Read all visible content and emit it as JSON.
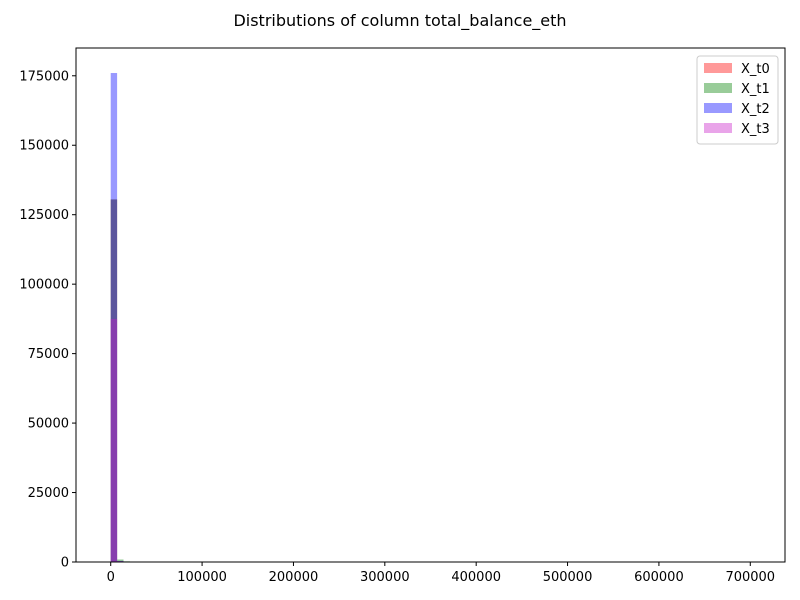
{
  "chart_data": {
    "type": "bar",
    "title": "Distributions of column total_balance_eth",
    "xlabel": "",
    "ylabel": "",
    "xlim": [
      -38000,
      738000
    ],
    "ylim": [
      0,
      185000
    ],
    "x_ticks": [
      0,
      100000,
      200000,
      300000,
      400000,
      500000,
      600000,
      700000
    ],
    "x_tick_labels": [
      "0",
      "100000",
      "200000",
      "300000",
      "400000",
      "500000",
      "600000",
      "700000"
    ],
    "y_ticks": [
      0,
      25000,
      50000,
      75000,
      100000,
      125000,
      150000,
      175000
    ],
    "y_tick_labels": [
      "0",
      "25000",
      "50000",
      "75000",
      "100000",
      "125000",
      "150000",
      "175000"
    ],
    "grid": false,
    "legend_position": "top-right",
    "bin_width": 7000,
    "series": [
      {
        "name": "X_t0",
        "color": "#ff0000",
        "opacity": 0.4,
        "bins": [
          {
            "x0": 0,
            "x1": 7000,
            "value": 130500
          },
          {
            "x0": 7000,
            "x1": 14000,
            "value": 300
          }
        ]
      },
      {
        "name": "X_t1",
        "color": "#008000",
        "opacity": 0.4,
        "bins": [
          {
            "x0": 0,
            "x1": 7000,
            "value": 130500
          },
          {
            "x0": 7000,
            "x1": 14000,
            "value": 900
          },
          {
            "x0": 14000,
            "x1": 21000,
            "value": 250
          }
        ]
      },
      {
        "name": "X_t2",
        "color": "#0000ff",
        "opacity": 0.4,
        "bins": [
          {
            "x0": 0,
            "x1": 7000,
            "value": 176000
          },
          {
            "x0": 7000,
            "x1": 14000,
            "value": 400
          }
        ]
      },
      {
        "name": "X_t3",
        "color": "#c71bc7",
        "opacity": 0.4,
        "bins": [
          {
            "x0": 0,
            "x1": 7000,
            "value": 87500
          },
          {
            "x0": 7000,
            "x1": 14000,
            "value": 300
          }
        ]
      }
    ]
  }
}
